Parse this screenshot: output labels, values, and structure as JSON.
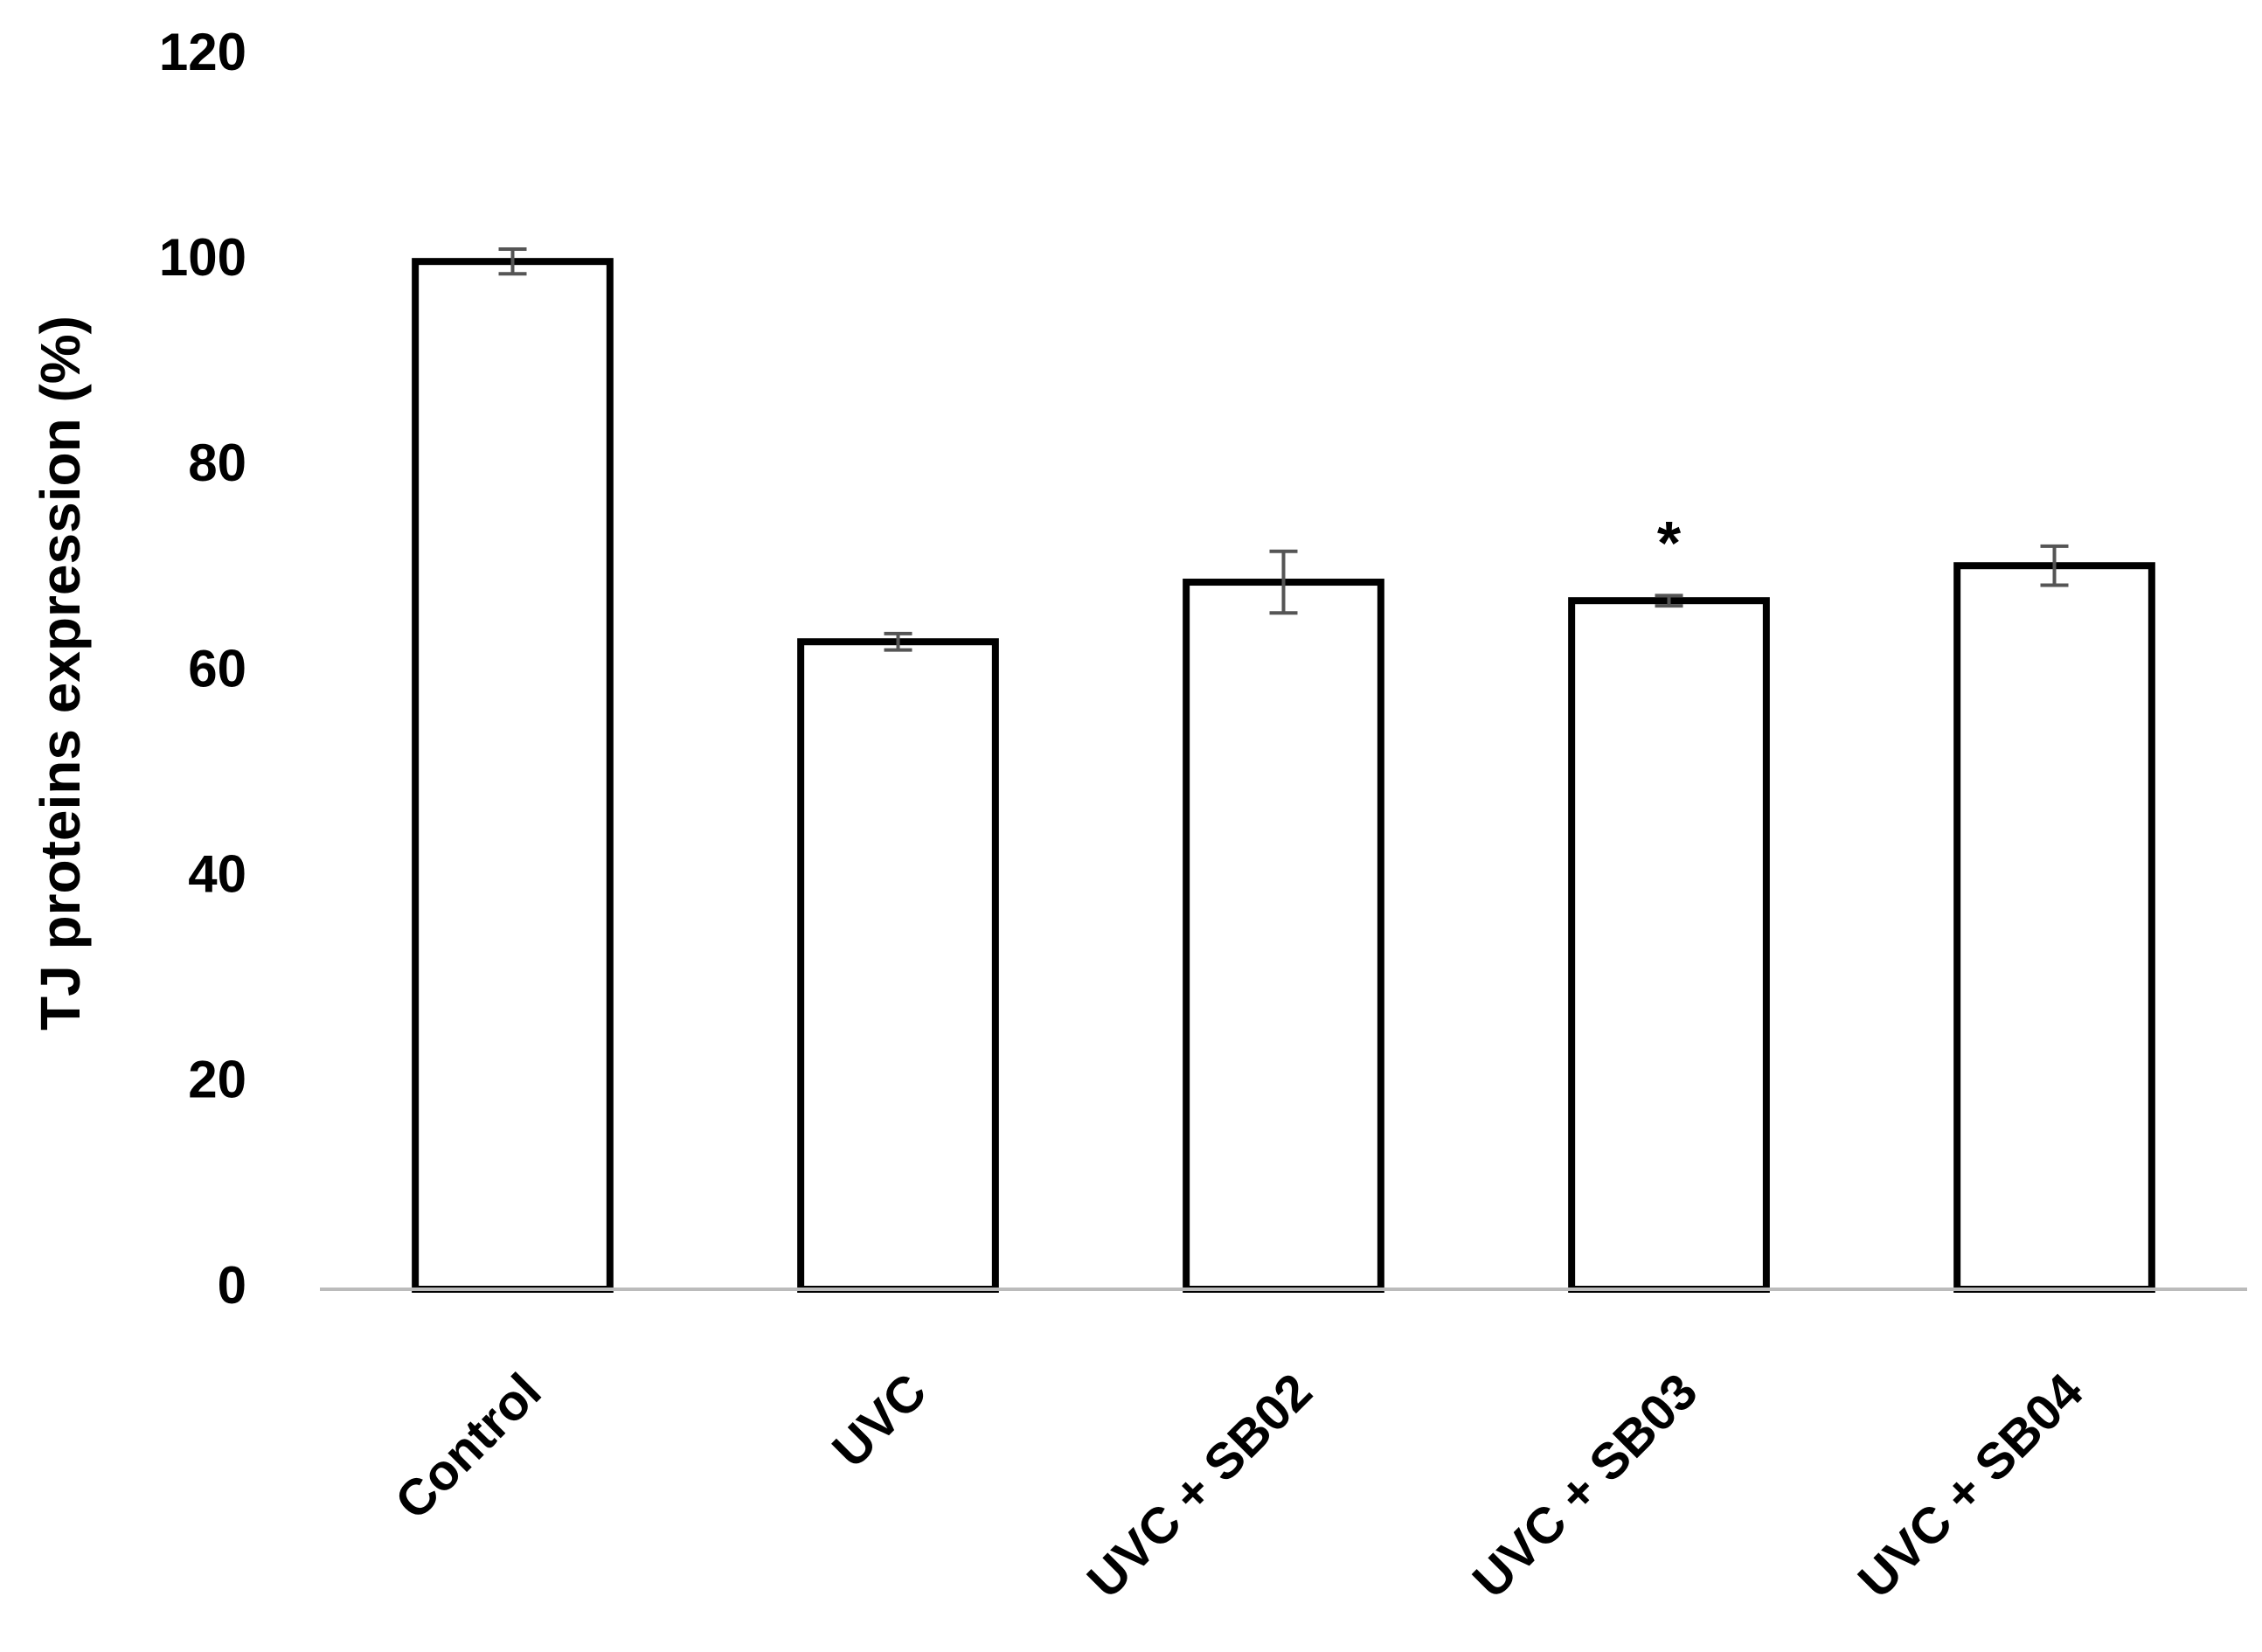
{
  "chart_data": {
    "type": "bar",
    "y_label": "TJ proteins expression (%)",
    "categories": [
      "Control",
      "UVC",
      "UVC + SB02",
      "UVC + SB03",
      "UVC + SB04"
    ],
    "values": [
      100,
      63,
      68.8,
      67,
      70.4
    ],
    "errors": [
      1.2,
      0.8,
      3,
      0.5,
      1.9
    ],
    "annotations": [
      {
        "category": "UVC + SB03",
        "text": "*"
      }
    ],
    "color": "#ffffff",
    "edge_color": "#000000",
    "error_color": "#555555",
    "ylim": [
      0,
      120
    ],
    "yticks": [
      0,
      20,
      40,
      60,
      80,
      100,
      120
    ],
    "grid": false
  }
}
